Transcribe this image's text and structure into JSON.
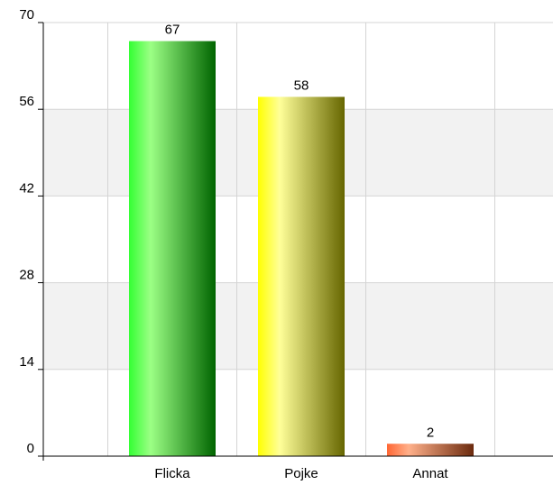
{
  "chart_data": {
    "type": "bar",
    "categories": [
      "Flicka",
      "Pojke",
      "Annat"
    ],
    "values": [
      67,
      58,
      2
    ],
    "data_labels": [
      "67",
      "58",
      "2"
    ],
    "ylim": [
      0,
      70
    ],
    "yticks": [
      0,
      14,
      28,
      42,
      56,
      70
    ],
    "ytick_labels": [
      "0",
      "14",
      "28",
      "42",
      "56",
      "70"
    ],
    "title": "",
    "xlabel": "",
    "ylabel": "",
    "grid": true,
    "alternate_band_color": "#f2f2f2",
    "grid_color": "#d4d4d4",
    "bar_colors": [
      {
        "light": "#9cff85",
        "mid": "#33ff33",
        "dark": "#006400"
      },
      {
        "light": "#ffff99",
        "mid": "#ffff00",
        "dark": "#666600"
      },
      {
        "light": "#ffb08a",
        "mid": "#ff6633",
        "dark": "#6b2a0e"
      }
    ]
  }
}
